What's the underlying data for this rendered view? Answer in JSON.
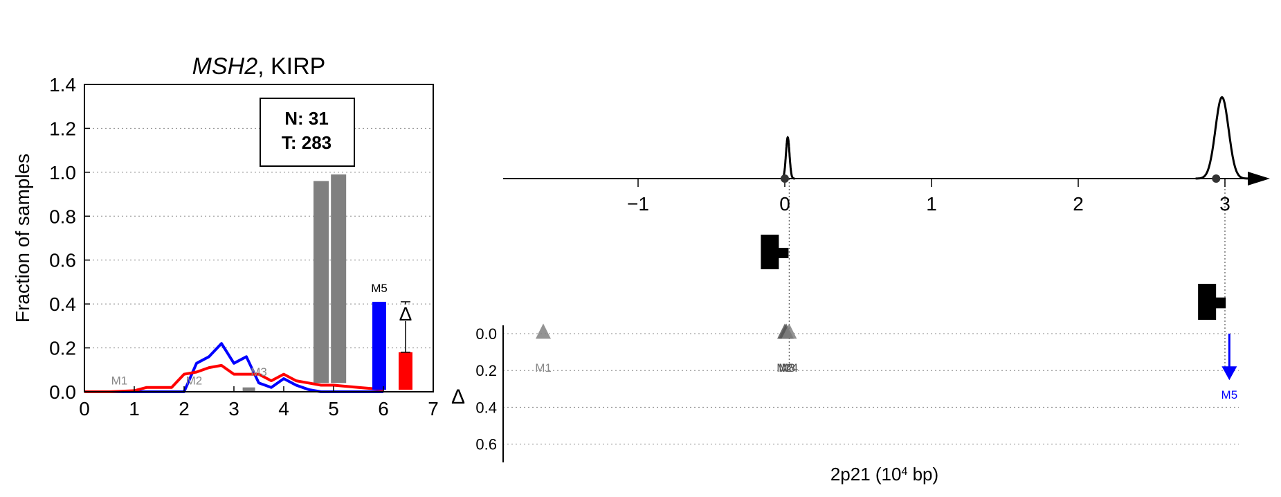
{
  "colors": {
    "normal": "#0000ff",
    "tumor": "#ff0000",
    "gray": "#808080",
    "dark_gray": "#555555",
    "axis": "#000000"
  },
  "chart_data": [
    {
      "type": "line",
      "title_gene": "MSH2",
      "title_rest": ", KIRP",
      "xlabel": "",
      "ylabel": "Fraction of samples",
      "xlim": [
        0,
        7
      ],
      "ylim": [
        0,
        1.4
      ],
      "x_ticks": [
        "0",
        "1",
        "2",
        "3",
        "4",
        "5",
        "6",
        "7"
      ],
      "y_ticks": [
        "0.0",
        "0.2",
        "0.4",
        "0.6",
        "0.8",
        "1.0",
        "1.2",
        "1.4"
      ],
      "grid": "horizontal dotted",
      "legend_box": {
        "n_label": "N: 31",
        "t_label": "T: 283"
      },
      "series": [
        {
          "color": "#0000ff",
          "x": [
            0,
            0.5,
            1.0,
            1.25,
            1.5,
            1.75,
            2.0,
            2.25,
            2.5,
            2.75,
            3.0,
            3.25,
            3.5,
            3.75,
            4.0,
            4.25,
            4.5,
            4.75,
            5.0,
            5.25,
            5.5,
            5.75,
            6.0
          ],
          "y": [
            0,
            0,
            0,
            0,
            0,
            0,
            0,
            0.13,
            0.16,
            0.22,
            0.13,
            0.16,
            0.04,
            0.02,
            0.06,
            0.03,
            0.01,
            0,
            0,
            0,
            0,
            0,
            0
          ]
        },
        {
          "color": "#ff0000",
          "x": [
            0,
            0.5,
            1.0,
            1.25,
            1.5,
            1.75,
            2.0,
            2.25,
            2.5,
            2.75,
            3.0,
            3.25,
            3.5,
            3.75,
            4.0,
            4.25,
            4.5,
            4.75,
            5.0,
            5.25,
            5.5,
            5.75,
            6.0
          ],
          "y": [
            0,
            0,
            0.005,
            0.02,
            0.02,
            0.02,
            0.08,
            0.09,
            0.11,
            0.12,
            0.08,
            0.08,
            0.08,
            0.05,
            0.08,
            0.05,
            0.04,
            0.03,
            0.03,
            0.025,
            0.02,
            0.015,
            0.01
          ]
        }
      ],
      "gray_bars": [
        {
          "x": 3.3,
          "y0": 0,
          "y1": 0.02
        },
        {
          "x": 4.75,
          "y0": 0.04,
          "y1": 0.96
        },
        {
          "x": 5.1,
          "y0": 0.04,
          "y1": 0.99
        }
      ],
      "m5_bars": {
        "label": "M5",
        "normal": 0.41,
        "tumor": 0.18,
        "delta_label": "Δ"
      },
      "markers": [
        {
          "label": "M1",
          "x": 0.7,
          "y": 0.02
        },
        {
          "label": "M2",
          "x": 2.2,
          "y": 0.02
        },
        {
          "label": "M3",
          "x": 3.5,
          "y": 0.06
        }
      ]
    },
    {
      "type": "scatter",
      "xlabel_base": "2p21 (10",
      "xlabel_sup": "4",
      "xlabel_tail": " bp)",
      "ylabel": "Δ",
      "xlim": [
        -1.9,
        3.3
      ],
      "x_ticks": [
        -1,
        0,
        1,
        2,
        3
      ],
      "x_tick_labels": [
        "−1",
        "0",
        "1",
        "2",
        "3"
      ],
      "y_ticks": [
        "0.0",
        "0.2",
        "0.4",
        "0.6"
      ],
      "delta_lim": [
        0,
        0.7
      ],
      "peaks": [
        {
          "center": 0.02,
          "height": 0.85,
          "width": 0.012
        },
        {
          "center": 2.98,
          "height": 1.68,
          "width": 0.045
        }
      ],
      "exons": [
        {
          "x": 0.0,
          "y": 0.65,
          "direction": "right"
        },
        {
          "x": 3.0,
          "y": 0.4,
          "direction": "right"
        }
      ],
      "points": [
        {
          "label": "M1",
          "x": -1.62,
          "delta": 0.02,
          "color": "#808080"
        },
        {
          "label": "M2",
          "x": 0.0,
          "delta": 0.02,
          "color": "#555555"
        },
        {
          "label": "M3",
          "x": 0.01,
          "delta": 0.02,
          "color": "#555555"
        },
        {
          "label": "M4",
          "x": 0.03,
          "delta": 0.02,
          "color": "#808080"
        },
        {
          "label": "M5",
          "x": 3.03,
          "delta": 0.22,
          "color": "#0000ff"
        }
      ]
    }
  ]
}
